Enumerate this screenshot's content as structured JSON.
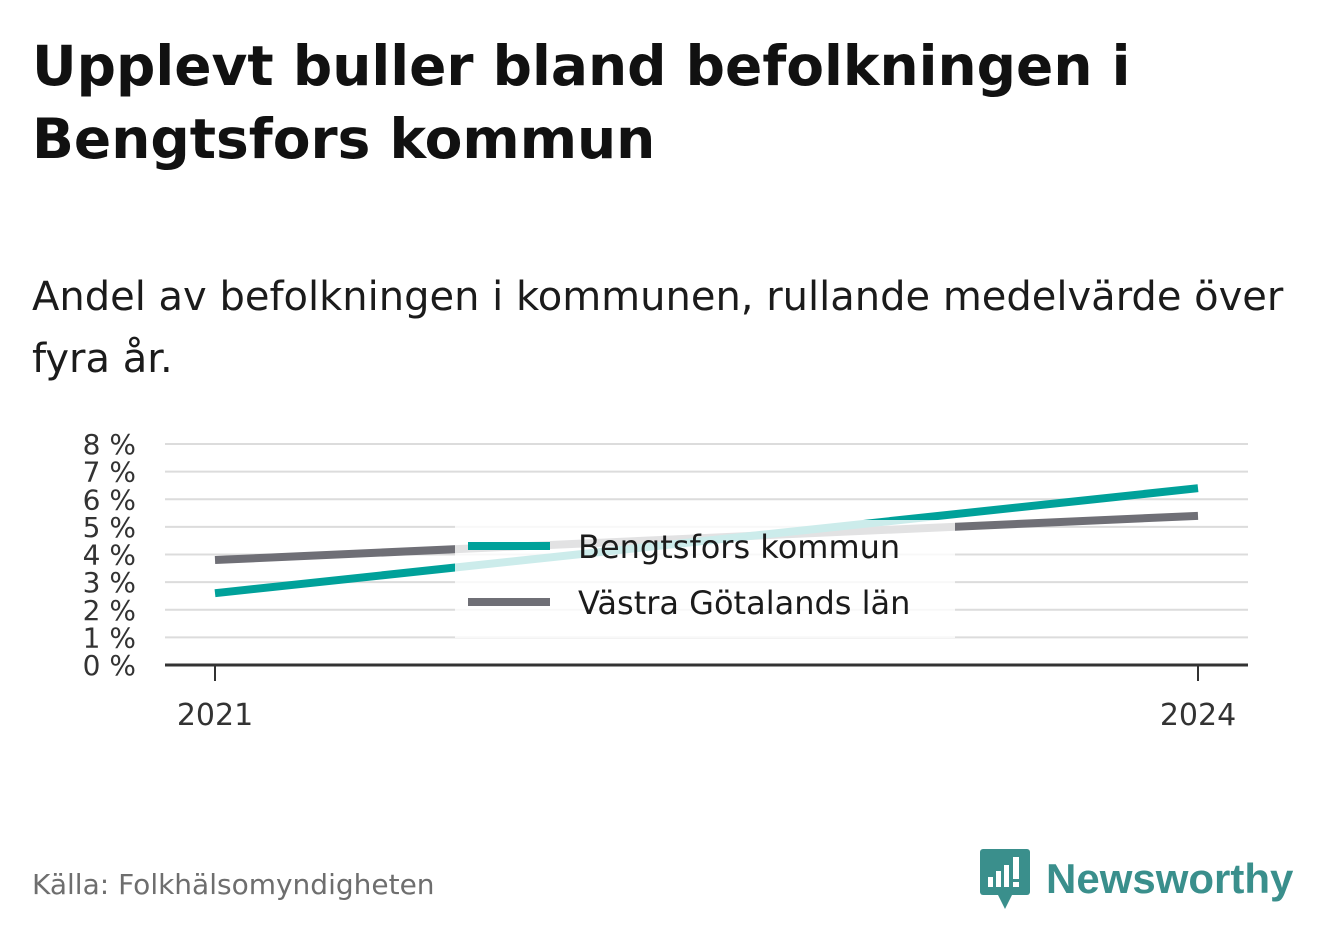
{
  "header": {
    "title": "Upplevt buller bland befolkningen i Bengtsfors kommun",
    "subtitle": "Andel av befolkningen i kommunen, rullande medelvärde över fyra år."
  },
  "footer": {
    "source": "Källa: Folkhälsomyndigheten",
    "brand": "Newsworthy"
  },
  "colors": {
    "bengtsfors": "#00a19a",
    "vastra_gotaland": "#6f6f76",
    "brand": "#3a8f8c",
    "grid": "#dcdcdc",
    "axis": "#333333"
  },
  "chart_data": {
    "type": "line",
    "x": [
      2021,
      2024
    ],
    "x_tick_labels": [
      "2021",
      "2024"
    ],
    "y_ticks": [
      0,
      1,
      2,
      3,
      4,
      5,
      6,
      7,
      8
    ],
    "y_tick_labels": [
      "0 %",
      "1 %",
      "2 %",
      "3 %",
      "4 %",
      "5 %",
      "6 %",
      "7 %",
      "8 %"
    ],
    "ylim": [
      0,
      8
    ],
    "grid": true,
    "legend_position": "center",
    "series": [
      {
        "name": "Bengtsfors kommun",
        "values": [
          2.6,
          6.4
        ],
        "color": "#00a19a"
      },
      {
        "name": "Västra Götalands län",
        "values": [
          3.8,
          5.4
        ],
        "color": "#6f6f76"
      }
    ]
  }
}
